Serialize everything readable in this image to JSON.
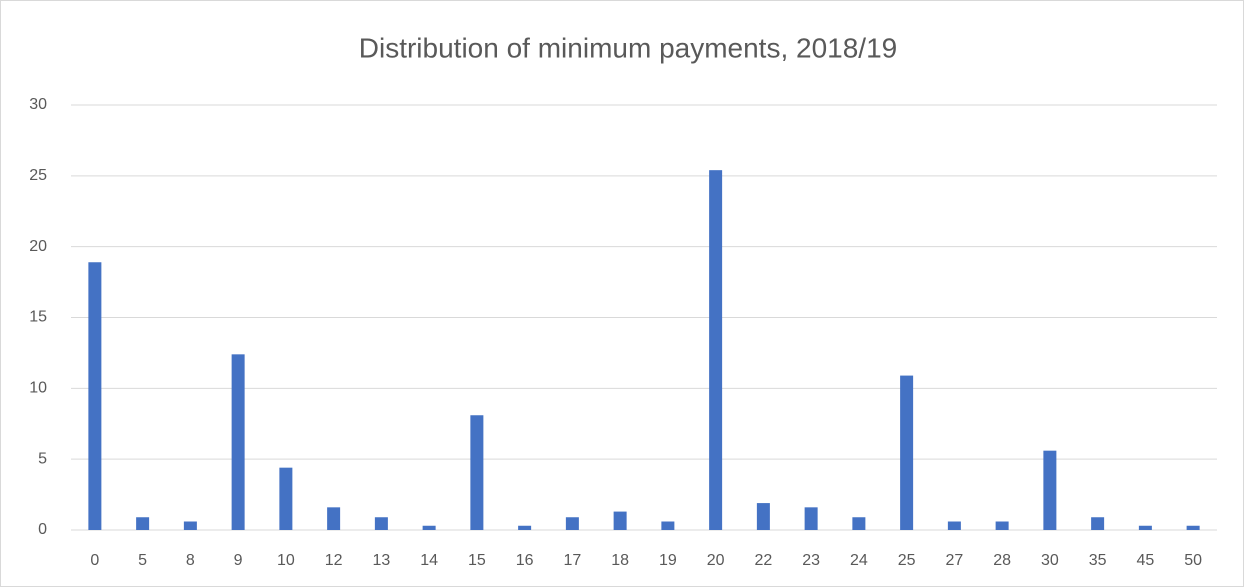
{
  "chart_data": {
    "type": "bar",
    "title": "Distribution of minimum payments, 2018/19",
    "categories": [
      "0",
      "5",
      "8",
      "9",
      "10",
      "12",
      "13",
      "14",
      "15",
      "16",
      "17",
      "18",
      "19",
      "20",
      "22",
      "23",
      "24",
      "25",
      "27",
      "28",
      "30",
      "35",
      "45",
      "50"
    ],
    "values": [
      18.9,
      0.9,
      0.6,
      12.4,
      4.4,
      1.6,
      0.9,
      0.3,
      8.1,
      0.3,
      0.9,
      1.3,
      0.6,
      25.4,
      1.9,
      1.6,
      0.9,
      10.9,
      0.6,
      0.6,
      5.6,
      0.9,
      0.3,
      0.3
    ],
    "color": "#4472c4",
    "ylim": [
      0,
      30
    ],
    "yticks": [
      0,
      5,
      10,
      15,
      20,
      25,
      30
    ],
    "grid": true
  }
}
